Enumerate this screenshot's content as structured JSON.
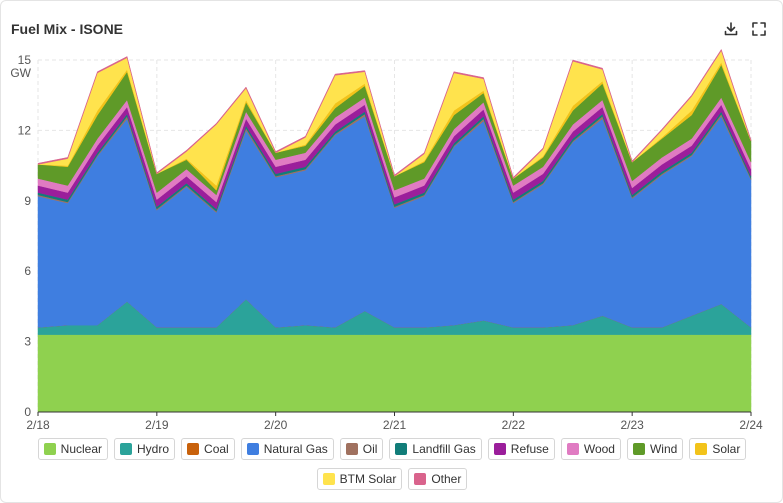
{
  "header": {
    "title": "Fuel Mix - ISONE",
    "download_icon": "download-icon",
    "fullscreen_icon": "fullscreen-icon"
  },
  "chart_data": {
    "type": "area",
    "stacked": true,
    "title": "Fuel Mix - ISONE",
    "ylabel": "GW",
    "ylim": [
      0,
      15
    ],
    "yticks": [
      0,
      3,
      6,
      9,
      12,
      15
    ],
    "xlim": [
      0,
      6
    ],
    "xticks": [
      {
        "v": 0,
        "label": "2/18"
      },
      {
        "v": 1,
        "label": "2/19"
      },
      {
        "v": 2,
        "label": "2/20"
      },
      {
        "v": 3,
        "label": "2/21"
      },
      {
        "v": 4,
        "label": "2/22"
      },
      {
        "v": 5,
        "label": "2/23"
      },
      {
        "v": 6,
        "label": "2/24"
      }
    ],
    "grid": true,
    "legend_position": "bottom",
    "x": [
      0,
      0.25,
      0.5,
      0.75,
      1,
      1.25,
      1.5,
      1.75,
      2,
      2.25,
      2.5,
      2.75,
      3,
      3.25,
      3.5,
      3.75,
      4,
      4.25,
      4.5,
      4.75,
      5,
      5.25,
      5.5,
      5.75,
      6
    ],
    "series": [
      {
        "name": "Nuclear",
        "color": "#8fd14f",
        "values": [
          3.3,
          3.3,
          3.3,
          3.3,
          3.3,
          3.3,
          3.3,
          3.3,
          3.3,
          3.3,
          3.3,
          3.3,
          3.3,
          3.3,
          3.3,
          3.3,
          3.3,
          3.3,
          3.3,
          3.3,
          3.3,
          3.3,
          3.3,
          3.3,
          3.3
        ]
      },
      {
        "name": "Hydro",
        "color": "#2ba39a",
        "values": [
          0.3,
          0.4,
          0.4,
          1.4,
          0.3,
          0.3,
          0.3,
          1.5,
          0.3,
          0.4,
          0.3,
          1.0,
          0.3,
          0.3,
          0.4,
          0.6,
          0.3,
          0.3,
          0.4,
          0.8,
          0.3,
          0.3,
          0.8,
          1.3,
          0.3
        ]
      },
      {
        "name": "Coal",
        "color": "#c8610b",
        "values": [
          0,
          0,
          0,
          0,
          0,
          0,
          0,
          0,
          0,
          0,
          0,
          0,
          0,
          0,
          0,
          0,
          0,
          0,
          0,
          0,
          0,
          0,
          0,
          0,
          0
        ]
      },
      {
        "name": "Natural Gas",
        "color": "#3f7ee0",
        "values": [
          5.6,
          5.2,
          7.2,
          7.8,
          5.0,
          6.0,
          4.9,
          7.2,
          6.4,
          6.6,
          8.2,
          8.3,
          5.1,
          5.6,
          7.6,
          8.5,
          5.3,
          6.1,
          7.8,
          8.4,
          5.5,
          6.5,
          6.8,
          8.0,
          6.3
        ]
      },
      {
        "name": "Oil",
        "color": "#a0715f",
        "values": [
          0.05,
          0.05,
          0.05,
          0.1,
          0.05,
          0.05,
          0.05,
          0.1,
          0.05,
          0.05,
          0.05,
          0.1,
          0.05,
          0.05,
          0.05,
          0.1,
          0.05,
          0.05,
          0.05,
          0.1,
          0.05,
          0.05,
          0.05,
          0.1,
          0.05
        ]
      },
      {
        "name": "Landfill Gas",
        "color": "#117d79",
        "values": [
          0.1,
          0.1,
          0.1,
          0.1,
          0.1,
          0.1,
          0.1,
          0.1,
          0.1,
          0.1,
          0.1,
          0.1,
          0.1,
          0.1,
          0.1,
          0.1,
          0.1,
          0.1,
          0.1,
          0.1,
          0.1,
          0.1,
          0.1,
          0.1,
          0.1
        ]
      },
      {
        "name": "Refuse",
        "color": "#9b1e9b",
        "values": [
          0.3,
          0.3,
          0.3,
          0.3,
          0.3,
          0.3,
          0.3,
          0.3,
          0.3,
          0.3,
          0.3,
          0.3,
          0.3,
          0.3,
          0.3,
          0.3,
          0.3,
          0.3,
          0.3,
          0.3,
          0.3,
          0.3,
          0.3,
          0.3,
          0.3
        ]
      },
      {
        "name": "Wood",
        "color": "#e07bc2",
        "values": [
          0.3,
          0.3,
          0.3,
          0.3,
          0.3,
          0.3,
          0.3,
          0.3,
          0.3,
          0.3,
          0.3,
          0.3,
          0.3,
          0.3,
          0.3,
          0.3,
          0.3,
          0.3,
          0.3,
          0.3,
          0.3,
          0.3,
          0.3,
          0.3,
          0.3
        ]
      },
      {
        "name": "Wind",
        "color": "#5f9a28",
        "values": [
          0.6,
          0.8,
          1.0,
          1.2,
          0.8,
          0.4,
          0.2,
          0.4,
          0.3,
          0.3,
          0.4,
          0.5,
          0.6,
          0.7,
          0.6,
          0.4,
          0.3,
          0.4,
          0.6,
          0.7,
          0.8,
          0.8,
          1.0,
          1.4,
          0.9
        ]
      },
      {
        "name": "Solar",
        "color": "#f2c31a",
        "values": [
          0,
          0.05,
          0.2,
          0.1,
          0,
          0.05,
          0.2,
          0.1,
          0,
          0.05,
          0.2,
          0.1,
          0,
          0.05,
          0.2,
          0.1,
          0,
          0.05,
          0.2,
          0.1,
          0,
          0.05,
          0.2,
          0.1,
          0
        ]
      },
      {
        "name": "BTM Solar",
        "color": "#ffe34d",
        "values": [
          0,
          0.3,
          1.6,
          0.5,
          0,
          0.3,
          2.6,
          0.5,
          0,
          0.3,
          1.2,
          0.5,
          0,
          0.3,
          1.6,
          0.5,
          0,
          0.3,
          1.9,
          0.5,
          0,
          0.3,
          0.6,
          0.5,
          0
        ]
      },
      {
        "name": "Other",
        "color": "#d9638c",
        "values": [
          0.05,
          0.05,
          0.05,
          0.05,
          0.05,
          0.05,
          0.05,
          0.05,
          0.05,
          0.05,
          0.05,
          0.05,
          0.05,
          0.05,
          0.05,
          0.05,
          0.05,
          0.05,
          0.05,
          0.05,
          0.05,
          0.05,
          0.05,
          0.05,
          0.05
        ]
      }
    ]
  }
}
